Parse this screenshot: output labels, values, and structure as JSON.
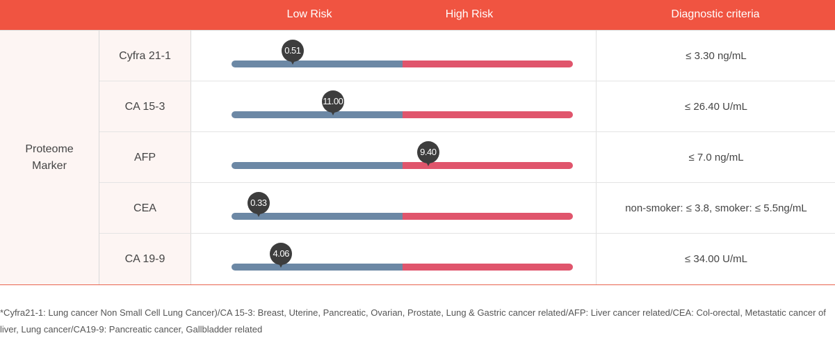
{
  "header": {
    "low_risk": "Low Risk",
    "high_risk": "High Risk",
    "diagnostic_criteria": "Diagnostic criteria"
  },
  "group": {
    "line1": "Proteome",
    "line2": "Marker"
  },
  "colors": {
    "header_bg": "#f05441",
    "low_risk": "#6c88a5",
    "high_risk": "#e0556c",
    "marker": "#3d3d3d",
    "label_bg": "#fdf5f3"
  },
  "chart_data": {
    "type": "table",
    "title": "",
    "columns": [
      "Low Risk",
      "High Risk",
      "Diagnostic criteria"
    ],
    "scale_note": "Each bar: left half = Low Risk, right half = High Risk; marker position given as fraction of bar length",
    "rows": [
      {
        "marker": "Cyfra 21-1",
        "value": "0.51",
        "position": 0.179,
        "criteria": "≤ 3.30 ng/mL"
      },
      {
        "marker": "CA 15-3",
        "value": "11.00",
        "position": 0.297,
        "criteria": "≤ 26.40 U/mL"
      },
      {
        "marker": "AFP",
        "value": "9.40",
        "position": 0.576,
        "criteria": "≤ 7.0 ng/mL"
      },
      {
        "marker": "CEA",
        "value": "0.33",
        "position": 0.079,
        "criteria": "non-smoker: ≤ 3.8, smoker: ≤ 5.5ng/mL"
      },
      {
        "marker": "CA 19-9",
        "value": "4.06",
        "position": 0.145,
        "criteria": "≤ 34.00 U/mL"
      }
    ]
  },
  "footnote": "*Cyfra21-1: Lung cancer Non Small Cell Lung Cancer)/CA 15-3: Breast, Uterine, Pancreatic, Ovarian, Prostate, Lung & Gastric cancer related/AFP: Liver cancer related/CEA: Col-orectal, Metastatic cancer of liver, Lung cancer/CA19-9: Pancreatic cancer, Gallbladder related"
}
